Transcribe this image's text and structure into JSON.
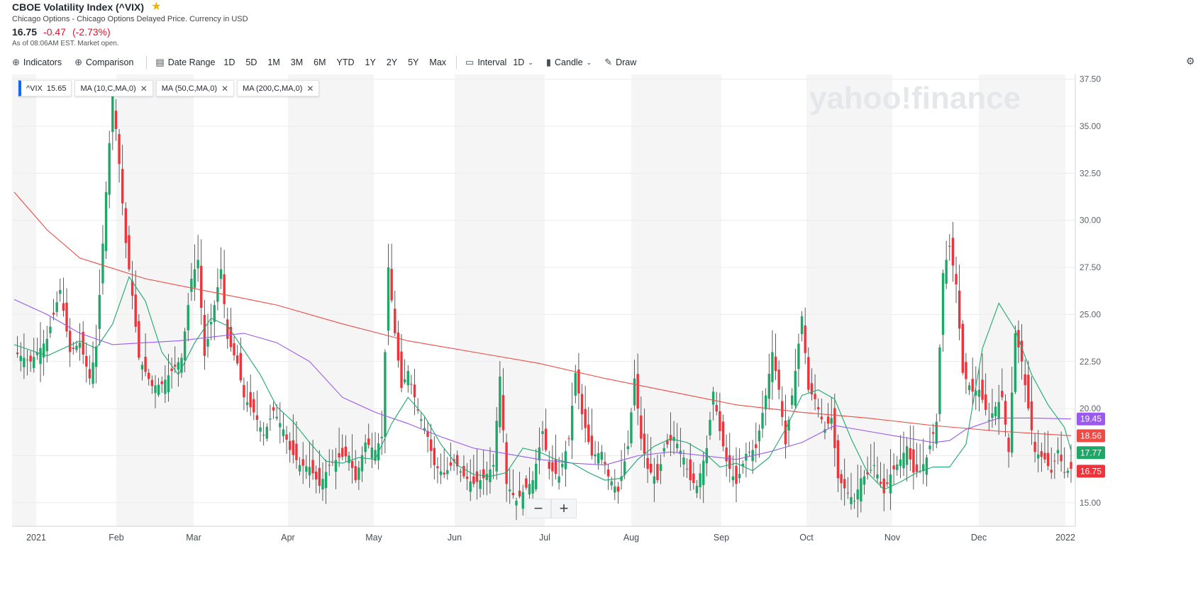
{
  "header": {
    "title": "CBOE Volatility Index (^VIX)",
    "subtitle": "Chicago Options - Chicago Options Delayed Price. Currency in USD",
    "price": "16.75",
    "change": "-0.47",
    "change_pct": "(-2.73%)",
    "as_of": "As of 08:06AM EST. Market open."
  },
  "toolbar": {
    "indicators": "Indicators",
    "comparison": "Comparison",
    "date_range": "Date Range",
    "ranges": [
      "1D",
      "5D",
      "1M",
      "3M",
      "6M",
      "YTD",
      "1Y",
      "2Y",
      "5Y",
      "Max"
    ],
    "interval_label": "Interval",
    "interval_value": "1D",
    "chart_type": "Candle",
    "draw": "Draw"
  },
  "legend": [
    {
      "label": "^VIX",
      "value": "15.65"
    },
    {
      "label": "MA (10,C,MA,0)"
    },
    {
      "label": "MA (50,C,MA,0)"
    },
    {
      "label": "MA (200,C,MA,0)"
    }
  ],
  "watermark": "yahoo!finance",
  "colors": {
    "up": "#1ea868",
    "down": "#f0333a",
    "ma10": "#1fa96e",
    "ma50": "#9b59f0",
    "ma200": "#f04a45",
    "band": "#f5f5f6"
  },
  "chart_data": {
    "type": "candlestick",
    "ylim": [
      13.75,
      37.75
    ],
    "yticks": [
      "15.00",
      "17.50",
      "20.00",
      "22.50",
      "25.00",
      "27.50",
      "30.00",
      "32.50",
      "35.00",
      "37.50"
    ],
    "month_labels": [
      "2021",
      "Feb",
      "Mar",
      "Apr",
      "May",
      "Jun",
      "Jul",
      "Aug",
      "Sep",
      "Oct",
      "Nov",
      "Dec",
      "2022"
    ],
    "price_tags": [
      {
        "value": 19.45,
        "label": "19.45",
        "color": "#9b59f0"
      },
      {
        "value": 18.56,
        "label": "18.56",
        "color": "#f04a45"
      },
      {
        "value": 17.77,
        "label": "17.77",
        "color": "#1ea868"
      },
      {
        "value": 16.75,
        "label": "16.75",
        "color": "#f0333a"
      }
    ],
    "close_points": [
      [
        0,
        23.0
      ],
      [
        5,
        22.5
      ],
      [
        10,
        23.7
      ],
      [
        14,
        26.3
      ],
      [
        17,
        23.0
      ],
      [
        20,
        23.5
      ],
      [
        23,
        21.6
      ],
      [
        25,
        23.3
      ],
      [
        28,
        31.5
      ],
      [
        30,
        36.7
      ],
      [
        32,
        33.0
      ],
      [
        34,
        28.8
      ],
      [
        36,
        26.0
      ],
      [
        38,
        22.7
      ],
      [
        42,
        21.2
      ],
      [
        45,
        21.3
      ],
      [
        48,
        22.0
      ],
      [
        51,
        22.7
      ],
      [
        54,
        26.9
      ],
      [
        56,
        27.9
      ],
      [
        58,
        22.8
      ],
      [
        61,
        25.5
      ],
      [
        63,
        27.4
      ],
      [
        65,
        23.7
      ],
      [
        68,
        22.4
      ],
      [
        70,
        20.6
      ],
      [
        73,
        19.8
      ],
      [
        76,
        18.6
      ],
      [
        79,
        19.9
      ],
      [
        82,
        18.9
      ],
      [
        84,
        17.8
      ],
      [
        87,
        17.0
      ],
      [
        90,
        16.9
      ],
      [
        93,
        15.9
      ],
      [
        96,
        17.0
      ],
      [
        99,
        17.4
      ],
      [
        102,
        17.5
      ],
      [
        104,
        16.2
      ],
      [
        107,
        18.2
      ],
      [
        110,
        17.8
      ],
      [
        112,
        18.5
      ],
      [
        114,
        27.5
      ],
      [
        116,
        24.0
      ],
      [
        118,
        21.1
      ],
      [
        120,
        22.0
      ],
      [
        123,
        19.9
      ],
      [
        126,
        18.5
      ],
      [
        128,
        17.0
      ],
      [
        131,
        16.5
      ],
      [
        134,
        17.2
      ],
      [
        137,
        16.4
      ],
      [
        140,
        16.0
      ],
      [
        143,
        16.3
      ],
      [
        146,
        17.0
      ],
      [
        148,
        21.7
      ],
      [
        150,
        16.0
      ],
      [
        153,
        15.1
      ],
      [
        156,
        15.8
      ],
      [
        158,
        16.2
      ],
      [
        161,
        18.8
      ],
      [
        163,
        16.8
      ],
      [
        166,
        16.4
      ],
      [
        169,
        18.4
      ],
      [
        171,
        21.9
      ],
      [
        173,
        19.7
      ],
      [
        176,
        17.5
      ],
      [
        179,
        17.7
      ],
      [
        181,
        16.4
      ],
      [
        184,
        15.6
      ],
      [
        187,
        18.0
      ],
      [
        189,
        21.6
      ],
      [
        191,
        18.4
      ],
      [
        193,
        16.8
      ],
      [
        196,
        16.2
      ],
      [
        198,
        17.9
      ],
      [
        201,
        18.5
      ],
      [
        204,
        17.4
      ],
      [
        206,
        16.2
      ],
      [
        208,
        15.9
      ],
      [
        211,
        17.9
      ],
      [
        213,
        20.9
      ],
      [
        215,
        18.8
      ],
      [
        217,
        17.2
      ],
      [
        220,
        16.0
      ],
      [
        223,
        17.6
      ],
      [
        226,
        17.9
      ],
      [
        229,
        20.7
      ],
      [
        231,
        23.0
      ],
      [
        233,
        21.0
      ],
      [
        235,
        18.1
      ],
      [
        238,
        22.0
      ],
      [
        240,
        24.9
      ],
      [
        242,
        21.0
      ],
      [
        244,
        20.5
      ],
      [
        247,
        18.9
      ],
      [
        249,
        19.5
      ],
      [
        251,
        16.3
      ],
      [
        254,
        15.5
      ],
      [
        256,
        15.1
      ],
      [
        258,
        16.3
      ],
      [
        260,
        16.5
      ],
      [
        262,
        17.0
      ],
      [
        265,
        15.5
      ],
      [
        267,
        16.5
      ],
      [
        270,
        17.3
      ],
      [
        272,
        18.0
      ],
      [
        274,
        16.6
      ],
      [
        276,
        16.7
      ],
      [
        278,
        17.4
      ],
      [
        281,
        19.3
      ],
      [
        283,
        27.2
      ],
      [
        285,
        28.6
      ],
      [
        287,
        26.6
      ],
      [
        289,
        21.9
      ],
      [
        292,
        20.9
      ],
      [
        294,
        21.0
      ],
      [
        297,
        19.4
      ],
      [
        299,
        20.1
      ],
      [
        301,
        20.6
      ],
      [
        303,
        17.7
      ],
      [
        305,
        24.0
      ],
      [
        307,
        22.5
      ],
      [
        309,
        20.0
      ],
      [
        311,
        17.7
      ],
      [
        314,
        17.3
      ],
      [
        316,
        16.6
      ],
      [
        318,
        17.8
      ],
      [
        320,
        16.6
      ],
      [
        322,
        16.8
      ]
    ],
    "ma10_points": [
      [
        0,
        23.4
      ],
      [
        10,
        22.8
      ],
      [
        20,
        23.6
      ],
      [
        25,
        23.2
      ],
      [
        30,
        24.5
      ],
      [
        35,
        27.0
      ],
      [
        40,
        25.7
      ],
      [
        45,
        23.0
      ],
      [
        50,
        21.8
      ],
      [
        55,
        23.5
      ],
      [
        60,
        24.8
      ],
      [
        65,
        24.4
      ],
      [
        70,
        23.1
      ],
      [
        75,
        21.8
      ],
      [
        80,
        20.1
      ],
      [
        85,
        19.3
      ],
      [
        90,
        18.2
      ],
      [
        95,
        17.2
      ],
      [
        100,
        17.1
      ],
      [
        105,
        17.4
      ],
      [
        110,
        17.3
      ],
      [
        115,
        19.2
      ],
      [
        120,
        20.6
      ],
      [
        125,
        19.6
      ],
      [
        130,
        18.1
      ],
      [
        135,
        17.0
      ],
      [
        140,
        16.5
      ],
      [
        145,
        16.4
      ],
      [
        150,
        16.6
      ],
      [
        155,
        17.9
      ],
      [
        160,
        17.7
      ],
      [
        165,
        17.3
      ],
      [
        170,
        17.1
      ],
      [
        175,
        16.6
      ],
      [
        180,
        16.2
      ],
      [
        185,
        16.3
      ],
      [
        190,
        17.3
      ],
      [
        195,
        18.0
      ],
      [
        200,
        18.4
      ],
      [
        205,
        18.2
      ],
      [
        210,
        17.7
      ],
      [
        215,
        16.9
      ],
      [
        220,
        17.1
      ],
      [
        225,
        16.7
      ],
      [
        230,
        17.4
      ],
      [
        235,
        18.9
      ],
      [
        240,
        20.7
      ],
      [
        245,
        21.0
      ],
      [
        250,
        20.5
      ],
      [
        255,
        18.4
      ],
      [
        260,
        16.6
      ],
      [
        265,
        15.7
      ],
      [
        270,
        16.1
      ],
      [
        275,
        16.6
      ],
      [
        280,
        16.9
      ],
      [
        285,
        16.9
      ],
      [
        290,
        18.1
      ],
      [
        295,
        23.2
      ],
      [
        300,
        25.6
      ],
      [
        305,
        24.2
      ],
      [
        310,
        21.8
      ],
      [
        315,
        20.2
      ],
      [
        320,
        19.0
      ],
      [
        322,
        17.77
      ]
    ],
    "ma50_points": [
      [
        0,
        25.8
      ],
      [
        10,
        25.0
      ],
      [
        20,
        24.0
      ],
      [
        30,
        23.4
      ],
      [
        40,
        23.5
      ],
      [
        50,
        23.6
      ],
      [
        60,
        23.8
      ],
      [
        70,
        24.0
      ],
      [
        80,
        23.5
      ],
      [
        90,
        22.5
      ],
      [
        100,
        20.6
      ],
      [
        110,
        19.8
      ],
      [
        120,
        19.2
      ],
      [
        130,
        18.5
      ],
      [
        140,
        17.9
      ],
      [
        150,
        17.6
      ],
      [
        160,
        17.3
      ],
      [
        170,
        17.1
      ],
      [
        180,
        17.0
      ],
      [
        190,
        17.5
      ],
      [
        200,
        17.7
      ],
      [
        210,
        17.5
      ],
      [
        220,
        17.3
      ],
      [
        230,
        17.7
      ],
      [
        240,
        18.2
      ],
      [
        250,
        19.1
      ],
      [
        260,
        18.8
      ],
      [
        270,
        18.5
      ],
      [
        280,
        18.2
      ],
      [
        285,
        18.3
      ],
      [
        290,
        18.9
      ],
      [
        300,
        19.5
      ],
      [
        310,
        19.5
      ],
      [
        322,
        19.45
      ]
    ],
    "ma200_points": [
      [
        0,
        31.5
      ],
      [
        10,
        29.5
      ],
      [
        20,
        28.0
      ],
      [
        40,
        26.9
      ],
      [
        60,
        26.2
      ],
      [
        80,
        25.5
      ],
      [
        100,
        24.5
      ],
      [
        120,
        23.6
      ],
      [
        140,
        23.0
      ],
      [
        160,
        22.4
      ],
      [
        180,
        21.6
      ],
      [
        200,
        20.9
      ],
      [
        220,
        20.2
      ],
      [
        240,
        19.8
      ],
      [
        260,
        19.5
      ],
      [
        280,
        19.1
      ],
      [
        300,
        18.8
      ],
      [
        322,
        18.56
      ]
    ]
  }
}
